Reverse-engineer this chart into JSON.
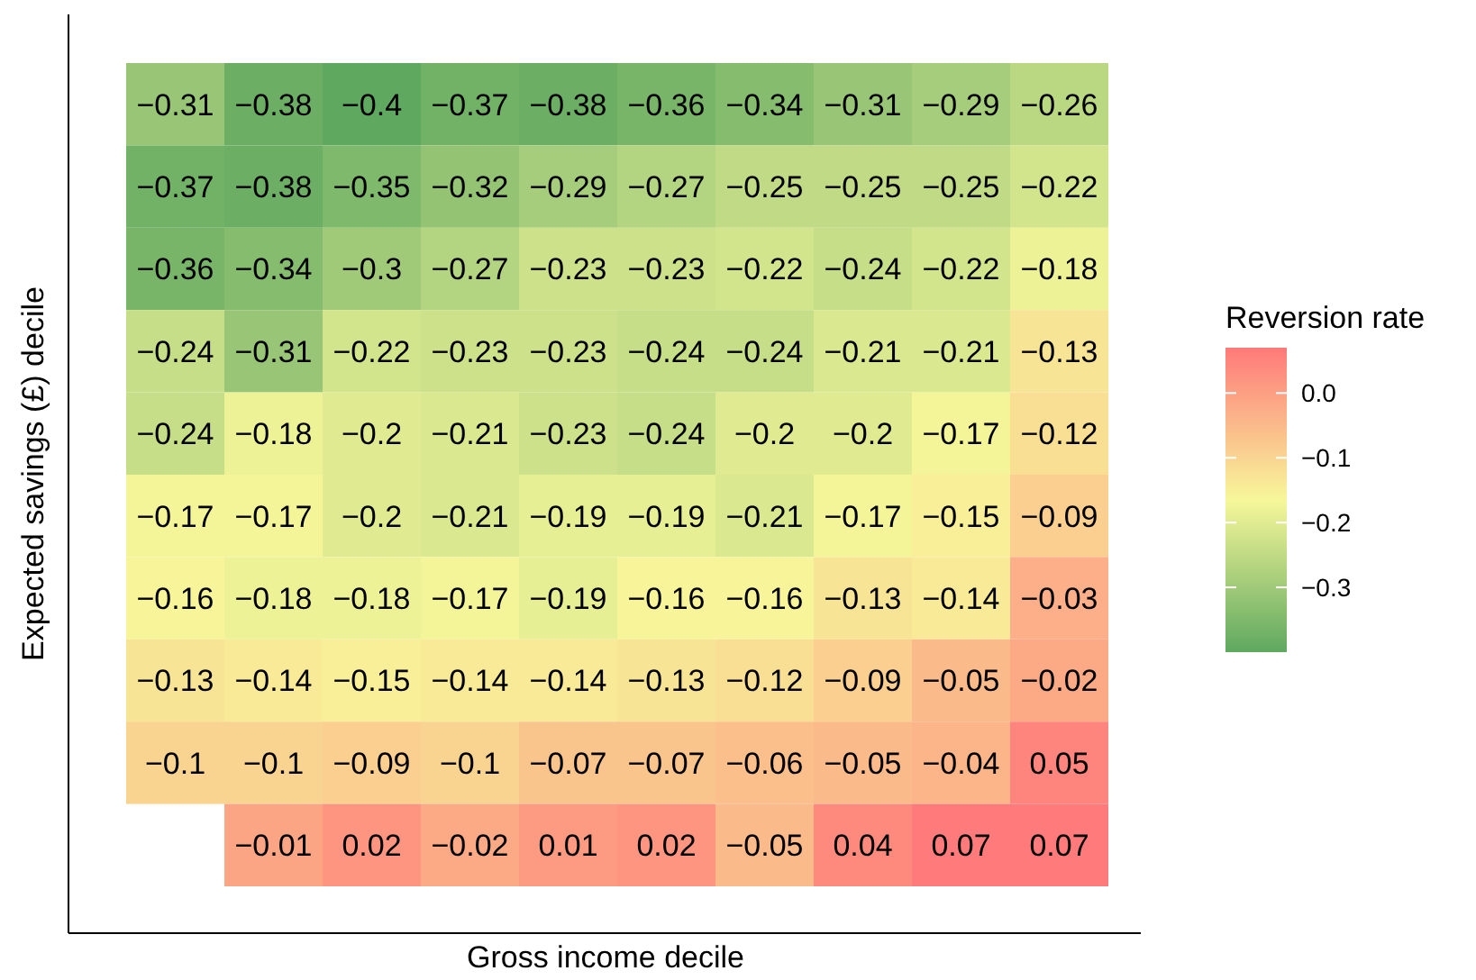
{
  "chart_data": {
    "type": "heatmap",
    "xlabel": "Gross income decile",
    "ylabel": "Expected savings (£) decile",
    "legend_title": "Reversion rate",
    "categories": [
      null,
      null,
      null,
      null,
      null,
      null,
      null,
      null,
      null,
      null
    ],
    "y_categories": [
      null,
      null,
      null,
      null,
      null,
      null,
      null,
      null,
      null,
      null
    ],
    "cells": [
      [
        -0.31,
        -0.38,
        -0.4,
        -0.37,
        -0.38,
        -0.36,
        -0.34,
        -0.31,
        -0.29,
        -0.26
      ],
      [
        -0.37,
        -0.38,
        -0.35,
        -0.32,
        -0.29,
        -0.27,
        -0.25,
        -0.25,
        -0.25,
        -0.22
      ],
      [
        -0.36,
        -0.34,
        -0.3,
        -0.27,
        -0.23,
        -0.23,
        -0.22,
        -0.24,
        -0.22,
        -0.18
      ],
      [
        -0.24,
        -0.31,
        -0.22,
        -0.23,
        -0.23,
        -0.24,
        -0.24,
        -0.21,
        -0.21,
        -0.13
      ],
      [
        -0.24,
        -0.18,
        -0.2,
        -0.21,
        -0.23,
        -0.24,
        -0.2,
        -0.2,
        -0.17,
        -0.12
      ],
      [
        -0.17,
        -0.17,
        -0.2,
        -0.21,
        -0.19,
        -0.19,
        -0.21,
        -0.17,
        -0.15,
        -0.09
      ],
      [
        -0.16,
        -0.18,
        -0.18,
        -0.17,
        -0.19,
        -0.16,
        -0.16,
        -0.13,
        -0.14,
        -0.03
      ],
      [
        -0.13,
        -0.14,
        -0.15,
        -0.14,
        -0.14,
        -0.13,
        -0.12,
        -0.09,
        -0.05,
        -0.02
      ],
      [
        -0.1,
        -0.1,
        -0.09,
        -0.1,
        -0.07,
        -0.07,
        -0.06,
        -0.05,
        -0.04,
        0.05
      ],
      [
        null,
        -0.01,
        0.02,
        -0.02,
        0.01,
        0.02,
        -0.05,
        0.04,
        0.07,
        0.07
      ]
    ],
    "data_labels": true,
    "clim": [
      -0.4,
      0.07
    ],
    "cticks": [
      {
        "value": 0,
        "label": "0.0"
      },
      {
        "value": -0.1,
        "label": "−0.1"
      },
      {
        "value": -0.2,
        "label": "−0.2"
      },
      {
        "value": -0.3,
        "label": "−0.3"
      }
    ]
  }
}
